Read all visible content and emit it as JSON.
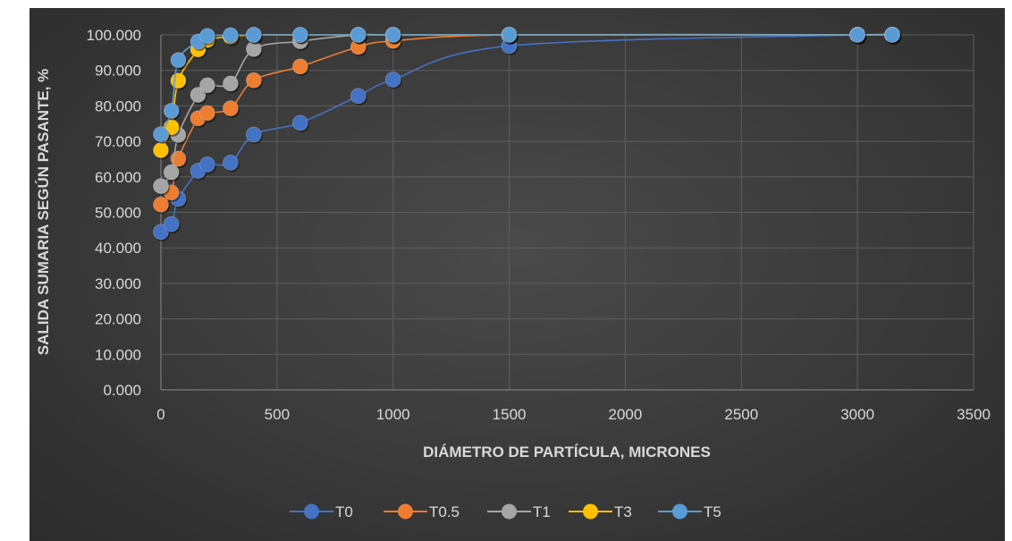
{
  "chart_data": {
    "type": "scatter",
    "title": "",
    "xlabel": "DIÁMETRO DE PARTÍCULA, MICRONES",
    "ylabel": "SALIDA SUMARIA SEGÚN PASANTE, %",
    "xlim": [
      0,
      3500
    ],
    "ylim": [
      0,
      100
    ],
    "x_ticks": [
      "0",
      "500",
      "1000",
      "1500",
      "2000",
      "2500",
      "3000",
      "3500"
    ],
    "y_ticks": [
      "0.000",
      "10.000",
      "20.000",
      "30.000",
      "40.000",
      "50.000",
      "60.000",
      "70.000",
      "80.000",
      "90.000",
      "100.000"
    ],
    "grid": true,
    "legend_position": "bottom",
    "series": [
      {
        "name": "T0",
        "color": "#4472c4",
        "x": [
          0,
          45,
          75,
          160,
          200,
          300,
          400,
          600,
          850,
          1000,
          1500,
          3000,
          3150
        ],
        "y": [
          44.5,
          46.7,
          53.8,
          61.7,
          63.5,
          64.0,
          71.9,
          75.2,
          82.8,
          87.4,
          96.9,
          100.0,
          100.0
        ]
      },
      {
        "name": "T0.5",
        "color": "#ed7d31",
        "x": [
          0,
          45,
          75,
          160,
          200,
          300,
          400,
          600,
          850,
          1000,
          1500,
          3000,
          3150
        ],
        "y": [
          52.2,
          55.6,
          65.1,
          76.5,
          78.0,
          79.3,
          87.2,
          91.1,
          96.6,
          98.3,
          100.0,
          100.0,
          100.0
        ]
      },
      {
        "name": "T1",
        "color": "#a5a5a5",
        "x": [
          0,
          45,
          75,
          160,
          200,
          300,
          400,
          600,
          850,
          1000,
          1500,
          3000,
          3150
        ],
        "y": [
          57.4,
          61.3,
          71.8,
          83.1,
          85.8,
          86.3,
          96.0,
          98.2,
          100.0,
          100.0,
          100.0,
          100.0,
          100.0
        ]
      },
      {
        "name": "T3",
        "color": "#ffc000",
        "x": [
          0,
          45,
          75,
          160,
          200,
          300,
          400,
          600,
          850,
          1000,
          1500,
          3000,
          3150
        ],
        "y": [
          67.5,
          74.0,
          87.1,
          95.9,
          98.6,
          99.5,
          100.0,
          100.0,
          100.0,
          100.0,
          100.0,
          100.0,
          100.0
        ]
      },
      {
        "name": "T5",
        "color": "#5b9bd5",
        "x": [
          0,
          45,
          75,
          160,
          200,
          300,
          400,
          600,
          850,
          1000,
          1500,
          3000,
          3150
        ],
        "y": [
          72.0,
          78.6,
          92.9,
          98.1,
          99.7,
          99.9,
          100.0,
          100.0,
          100.0,
          100.0,
          100.0,
          100.0,
          100.0
        ]
      }
    ]
  }
}
